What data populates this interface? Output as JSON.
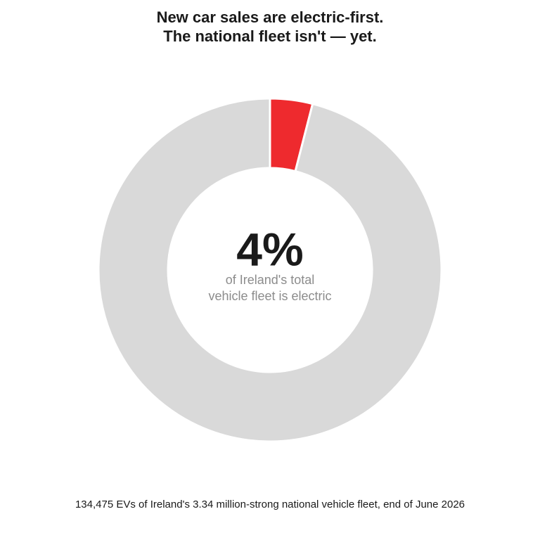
{
  "chart_data": {
    "type": "donut",
    "title": [
      "New car sales are electric-first.",
      "The national fleet isn't — yet."
    ],
    "values": [
      4,
      96
    ],
    "value_labels": [
      "4%",
      null
    ],
    "colors": [
      "#ee2a2e",
      "#d9d9d9"
    ],
    "center_text": [
      "of Ireland's total",
      "vehicle fleet is electric"
    ],
    "note": "134,475 EVs of Ireland's 3.34 million-strong national vehicle fleet, end of June 2026"
  }
}
